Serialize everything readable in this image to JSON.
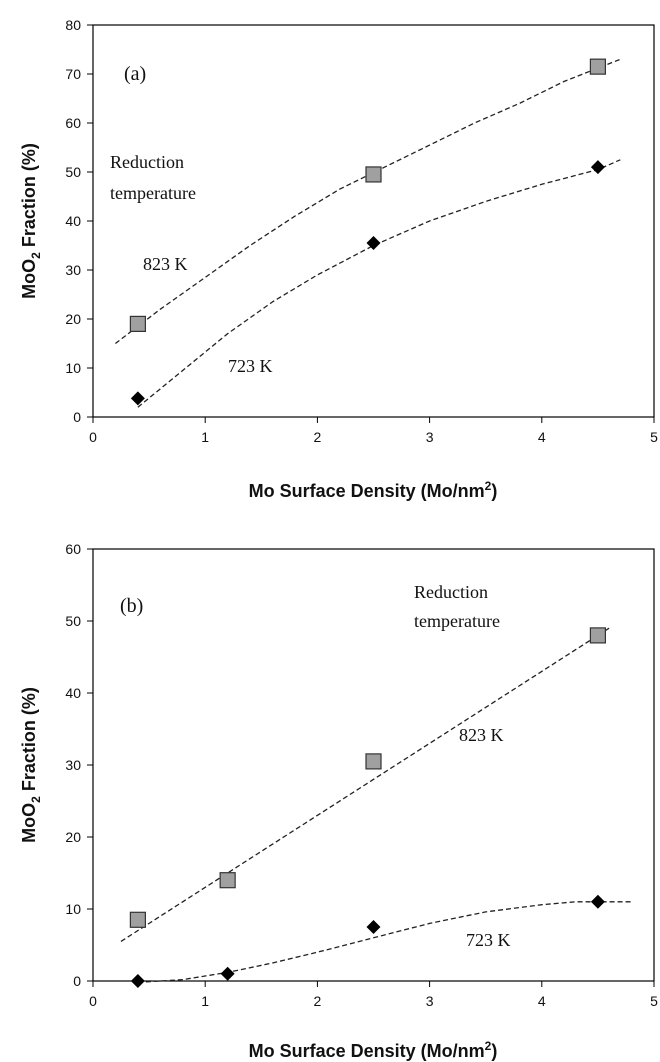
{
  "chart_data": [
    {
      "type": "scatter",
      "panel_label": "(a)",
      "xlabel": "Mo Surface Density (Mo/nm",
      "xlabel_sup": "2",
      "xlabel_end": ")",
      "ylabel": "MoO",
      "ylabel_sub": "2",
      "ylabel_end": " Fraction (%)",
      "xlim": [
        0,
        5
      ],
      "ylim": [
        0,
        80
      ],
      "xticks": [
        "0",
        "1",
        "2",
        "3",
        "4",
        "5"
      ],
      "yticks": [
        "0",
        "10",
        "20",
        "30",
        "40",
        "50",
        "60",
        "70",
        "80"
      ],
      "grid": false,
      "annotations": [
        "Reduction",
        "temperature"
      ],
      "series": [
        {
          "name": "823 K",
          "marker": "square",
          "color": "#a0a0a0",
          "x": [
            0.4,
            2.5,
            4.5
          ],
          "y": [
            19,
            49.5,
            71.5
          ],
          "fit_x": [
            0.2,
            0.6,
            1.0,
            1.4,
            1.8,
            2.2,
            2.6,
            3.0,
            3.4,
            3.8,
            4.2,
            4.7
          ],
          "fit_y": [
            15,
            22,
            28.5,
            35,
            41,
            46.5,
            51,
            55.5,
            60,
            64,
            68.5,
            73
          ]
        },
        {
          "name": "723 K",
          "marker": "diamond",
          "color": "#000000",
          "x": [
            0.4,
            2.5,
            4.5
          ],
          "y": [
            3.8,
            35.5,
            51
          ],
          "fit_x": [
            0.4,
            0.8,
            1.2,
            1.6,
            2.0,
            2.5,
            3.0,
            3.5,
            4.0,
            4.5,
            4.7
          ],
          "fit_y": [
            2,
            9.5,
            17,
            23.5,
            29,
            35,
            40,
            44,
            47.5,
            50.5,
            52.5
          ]
        }
      ]
    },
    {
      "type": "scatter",
      "panel_label": "(b)",
      "xlabel": "Mo Surface Density (Mo/nm",
      "xlabel_sup": "2",
      "xlabel_end": ")",
      "ylabel": "MoO",
      "ylabel_sub": "2",
      "ylabel_end": " Fraction (%)",
      "xlim": [
        0,
        5
      ],
      "ylim": [
        0,
        60
      ],
      "xticks": [
        "0",
        "1",
        "2",
        "3",
        "4",
        "5"
      ],
      "yticks": [
        "0",
        "10",
        "20",
        "30",
        "40",
        "50",
        "60"
      ],
      "grid": false,
      "annotations": [
        "Reduction",
        "temperature"
      ],
      "series": [
        {
          "name": "823 K",
          "marker": "square",
          "color": "#a0a0a0",
          "x": [
            0.4,
            1.2,
            2.5,
            4.5
          ],
          "y": [
            8.5,
            14,
            30.5,
            48
          ],
          "fit_x": [
            0.25,
            4.6
          ],
          "fit_y": [
            5.5,
            49
          ]
        },
        {
          "name": "723 K",
          "marker": "diamond",
          "color": "#000000",
          "x": [
            0.4,
            1.2,
            2.5,
            4.5
          ],
          "y": [
            0,
            1,
            7.5,
            11
          ],
          "fit_x": [
            0.4,
            0.8,
            1.2,
            1.6,
            2.0,
            2.5,
            3.0,
            3.5,
            4.0,
            4.3,
            4.5,
            4.8
          ],
          "fit_y": [
            -0.2,
            0.2,
            1.2,
            2.5,
            4,
            6,
            8,
            9.6,
            10.6,
            11,
            11,
            11
          ]
        }
      ]
    }
  ]
}
